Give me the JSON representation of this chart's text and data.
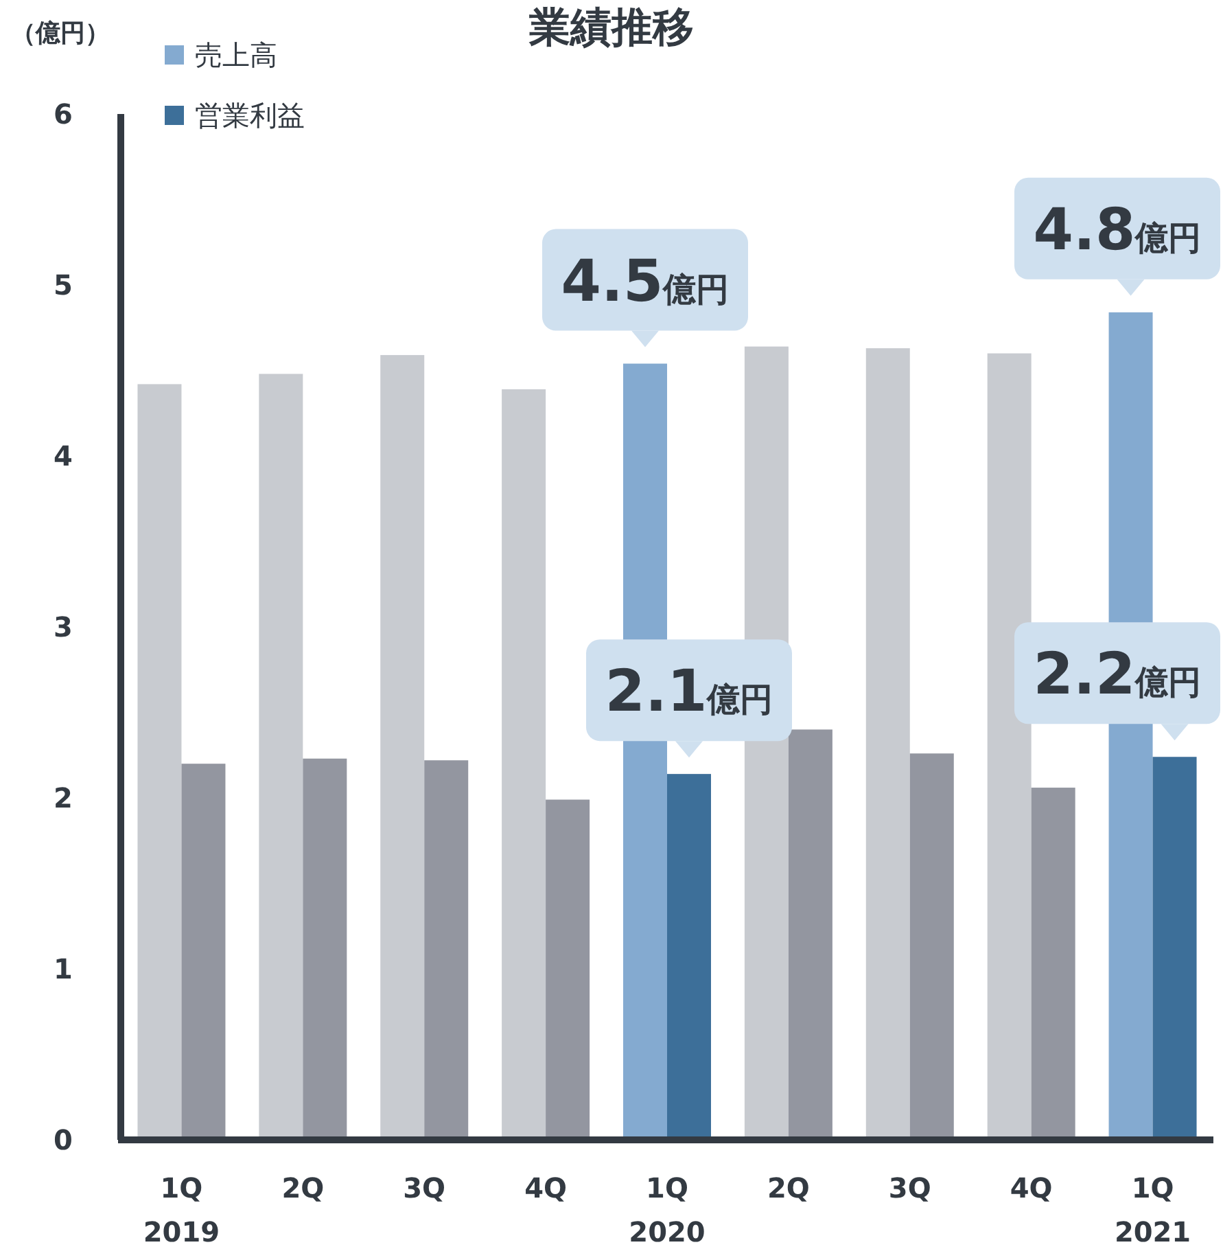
{
  "chart_data": {
    "type": "bar",
    "title": "業績推移",
    "ylabel": "（億円）",
    "categories": [
      "1Q\n2019",
      "2Q",
      "3Q",
      "4Q",
      "1Q\n2020",
      "2Q",
      "3Q",
      "4Q",
      "1Q\n2021"
    ],
    "series": [
      {
        "name": "売上高",
        "color": "#84aad0",
        "colors": [
          "#c8cbd0",
          "#c8cbd0",
          "#c8cbd0",
          "#c8cbd0",
          "#84aad0",
          "#c8cbd0",
          "#c8cbd0",
          "#c8cbd0",
          "#84aad0"
        ],
        "values": [
          4.42,
          4.48,
          4.59,
          4.39,
          4.54,
          4.64,
          4.63,
          4.6,
          4.84
        ],
        "value_labels": [
          null,
          null,
          null,
          null,
          "4.5億円",
          null,
          null,
          null,
          "4.8億円"
        ]
      },
      {
        "name": "営業利益",
        "color": "#3d6f99",
        "colors": [
          "#9396a0",
          "#9396a0",
          "#9396a0",
          "#9396a0",
          "#3d6f99",
          "#9396a0",
          "#9396a0",
          "#9396a0",
          "#3d6f99"
        ],
        "values": [
          2.2,
          2.23,
          2.22,
          1.99,
          2.14,
          2.4,
          2.26,
          2.06,
          2.24
        ],
        "value_labels": [
          null,
          null,
          null,
          null,
          "2.1億円",
          null,
          null,
          null,
          "2.2億円"
        ]
      }
    ],
    "ylim": [
      0,
      6
    ],
    "yticks": [
      0,
      1,
      2,
      3,
      4,
      5,
      6
    ],
    "grid": false,
    "legend": "top left"
  }
}
